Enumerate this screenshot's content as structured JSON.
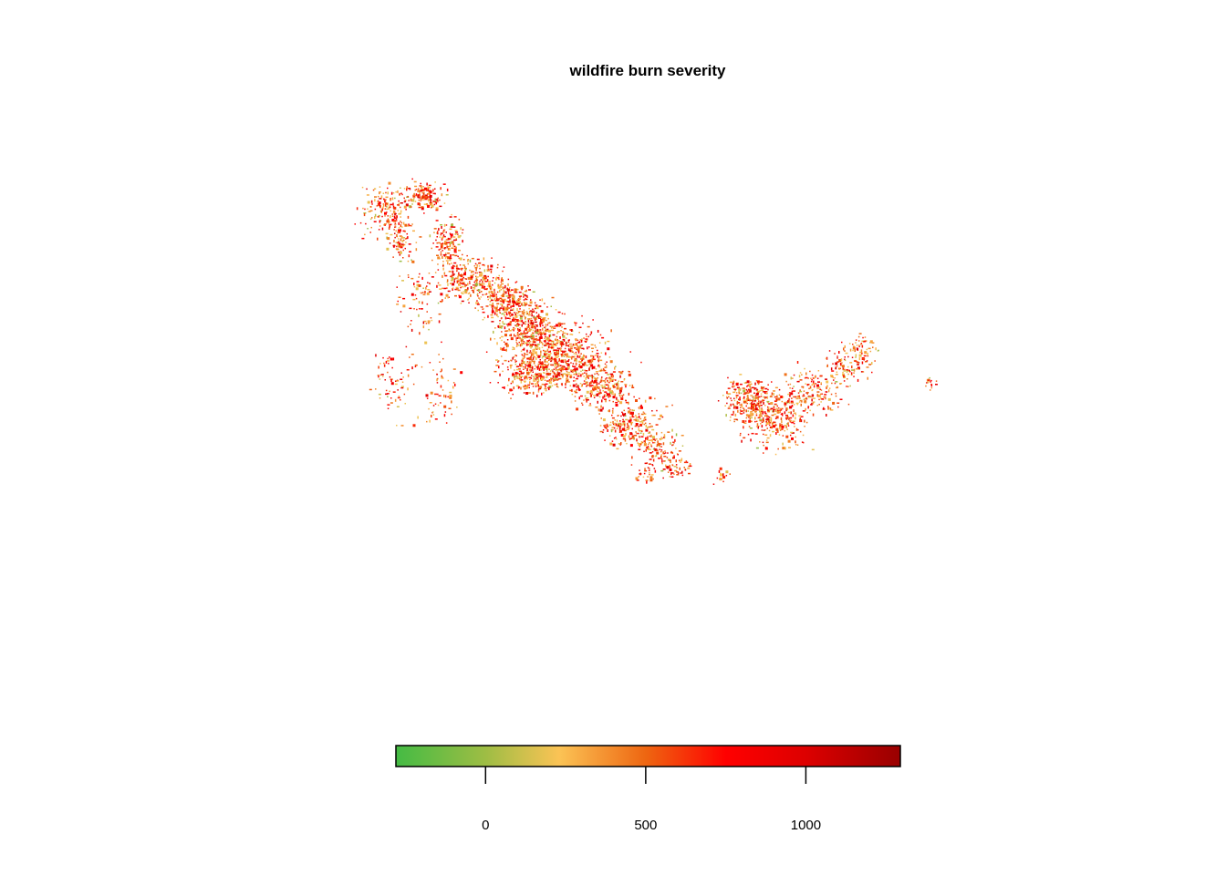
{
  "title": "wildfire burn severity",
  "legend": {
    "min": -280,
    "max": 1295,
    "ticks": [
      {
        "value": 0,
        "label": "0"
      },
      {
        "value": 500,
        "label": "500"
      },
      {
        "value": 1000,
        "label": "1000"
      }
    ],
    "color_stops": [
      {
        "value": -280,
        "color": "#44bb44"
      },
      {
        "value": 0,
        "color": "#9ebd44"
      },
      {
        "value": 230,
        "color": "#fbc355"
      },
      {
        "value": 500,
        "color": "#ee6611"
      },
      {
        "value": 750,
        "color": "#ff0000"
      },
      {
        "value": 1000,
        "color": "#dd0000"
      },
      {
        "value": 1295,
        "color": "#990000"
      }
    ]
  }
}
